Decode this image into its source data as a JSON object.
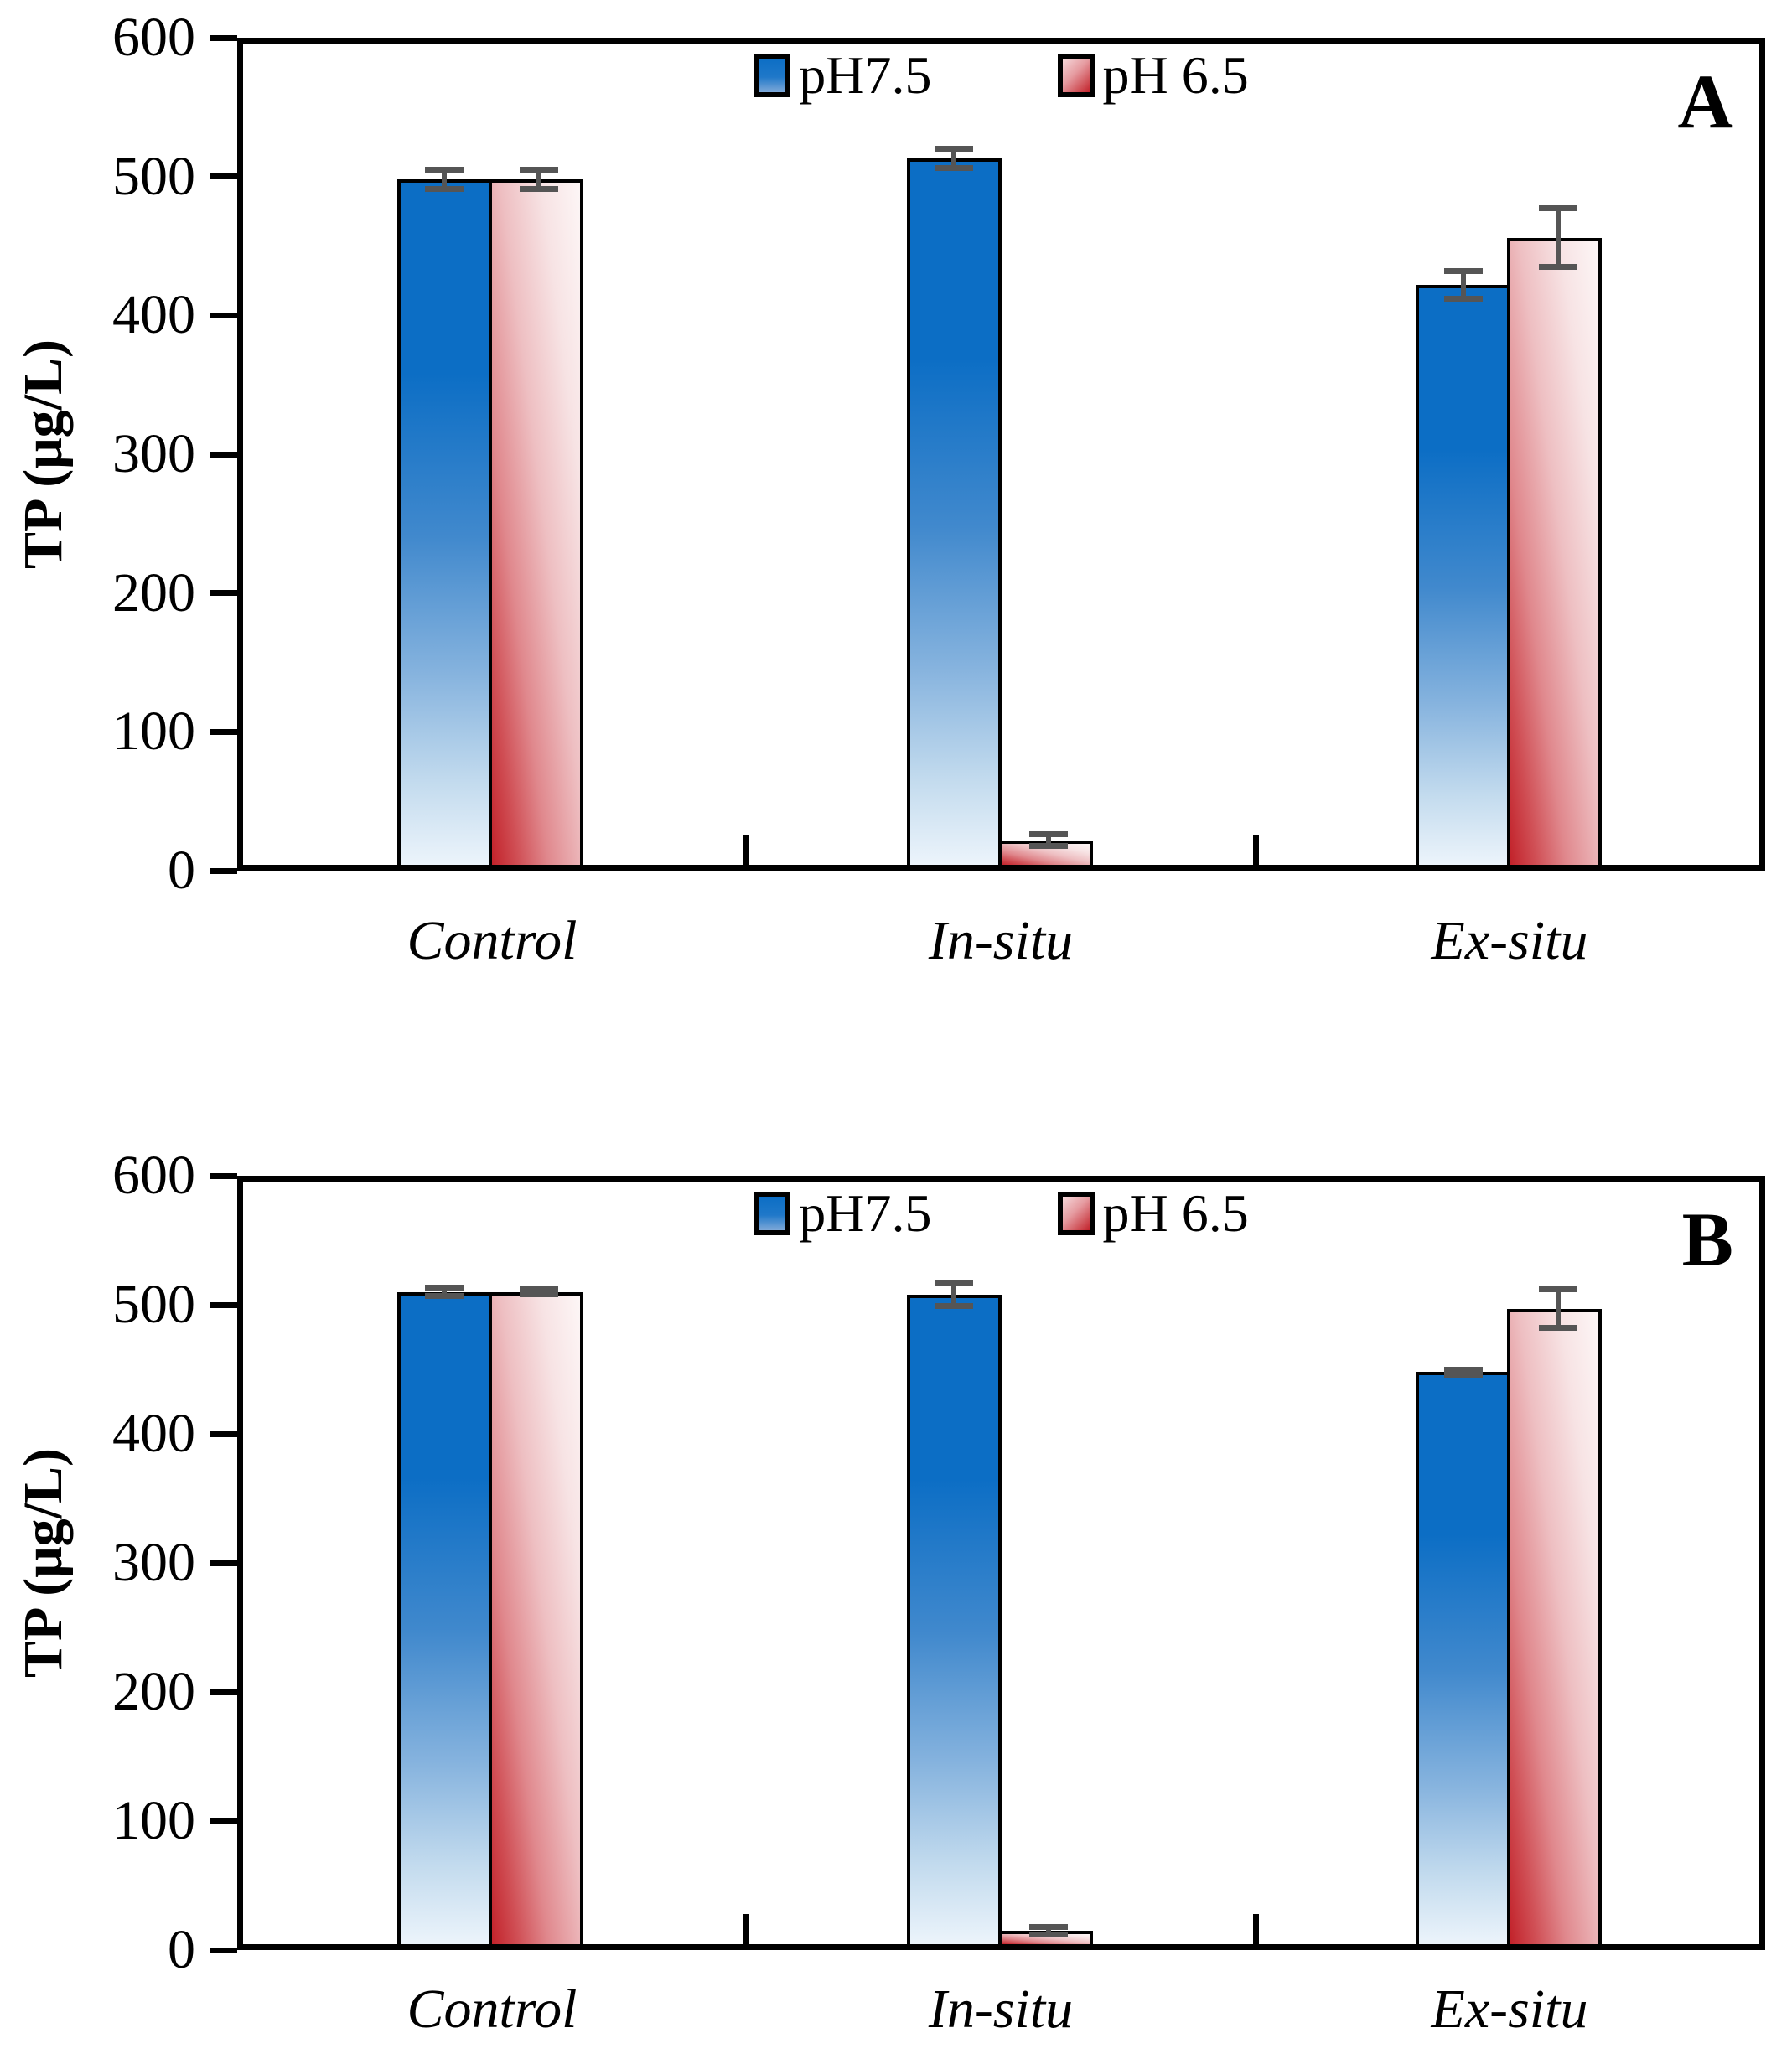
{
  "figure": {
    "background": "#ffffff",
    "axis_color": "#000000",
    "error_bar_color": "#555555"
  },
  "chart_data": [
    {
      "type": "bar",
      "panel_label": "A",
      "ylabel": "TP (μg/L)",
      "ylim": [
        0,
        600
      ],
      "yticks": [
        0,
        100,
        200,
        300,
        400,
        500,
        600
      ],
      "grid": false,
      "legend_position": "top-center",
      "categories": [
        "Control",
        "In-situ",
        "Ex-situ"
      ],
      "series": [
        {
          "name": "pH7.5",
          "color": "#0c6ec5",
          "gradient": "blue-top-to-white-bottom",
          "values": [
            498,
            513,
            422
          ],
          "errors": [
            7,
            7,
            10
          ]
        },
        {
          "name": "pH 6.5",
          "color": "#c2222a",
          "gradient": "white-top-to-red-bottom",
          "values": [
            498,
            22,
            456
          ],
          "errors": [
            7,
            4,
            21
          ]
        }
      ]
    },
    {
      "type": "bar",
      "panel_label": "B",
      "ylabel": "TP (μg/L)",
      "ylim": [
        0,
        600
      ],
      "yticks": [
        0,
        100,
        200,
        300,
        400,
        500,
        600
      ],
      "grid": false,
      "legend_position": "top-center",
      "categories": [
        "Control",
        "In-situ",
        "Ex-situ"
      ],
      "series": [
        {
          "name": "pH7.5",
          "color": "#0c6ec5",
          "gradient": "blue-top-to-white-bottom",
          "values": [
            510,
            508,
            448
          ],
          "errors": [
            3,
            9,
            2
          ]
        },
        {
          "name": "pH 6.5",
          "color": "#c2222a",
          "gradient": "white-top-to-red-bottom",
          "values": [
            510,
            15,
            497
          ],
          "errors": [
            2,
            3,
            15
          ]
        }
      ]
    }
  ]
}
